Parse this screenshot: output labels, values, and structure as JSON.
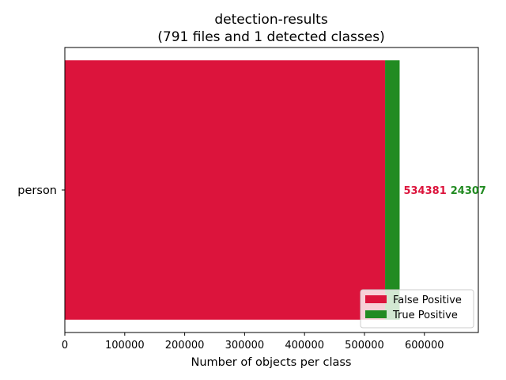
{
  "chart_data": {
    "type": "bar",
    "orientation": "horizontal",
    "stacked": true,
    "title": "detection-results",
    "subtitle": "(791 files and 1 detected classes)",
    "xlabel": "Number of objects per class",
    "ylabel": "",
    "categories": [
      "person"
    ],
    "series": [
      {
        "name": "False Positive",
        "values": [
          534381
        ],
        "color": "#dc143c"
      },
      {
        "name": "True Positive",
        "values": [
          24307
        ],
        "color": "#228b22"
      }
    ],
    "xlim": [
      0,
      690000
    ],
    "xticks": [
      0,
      100000,
      200000,
      300000,
      400000,
      500000,
      600000
    ],
    "xtick_labels": [
      "0",
      "100000",
      "200000",
      "300000",
      "400000",
      "500000",
      "600000"
    ],
    "data_labels": [
      "534381",
      "24307"
    ],
    "grid": false,
    "legend_position": "lower-right"
  }
}
